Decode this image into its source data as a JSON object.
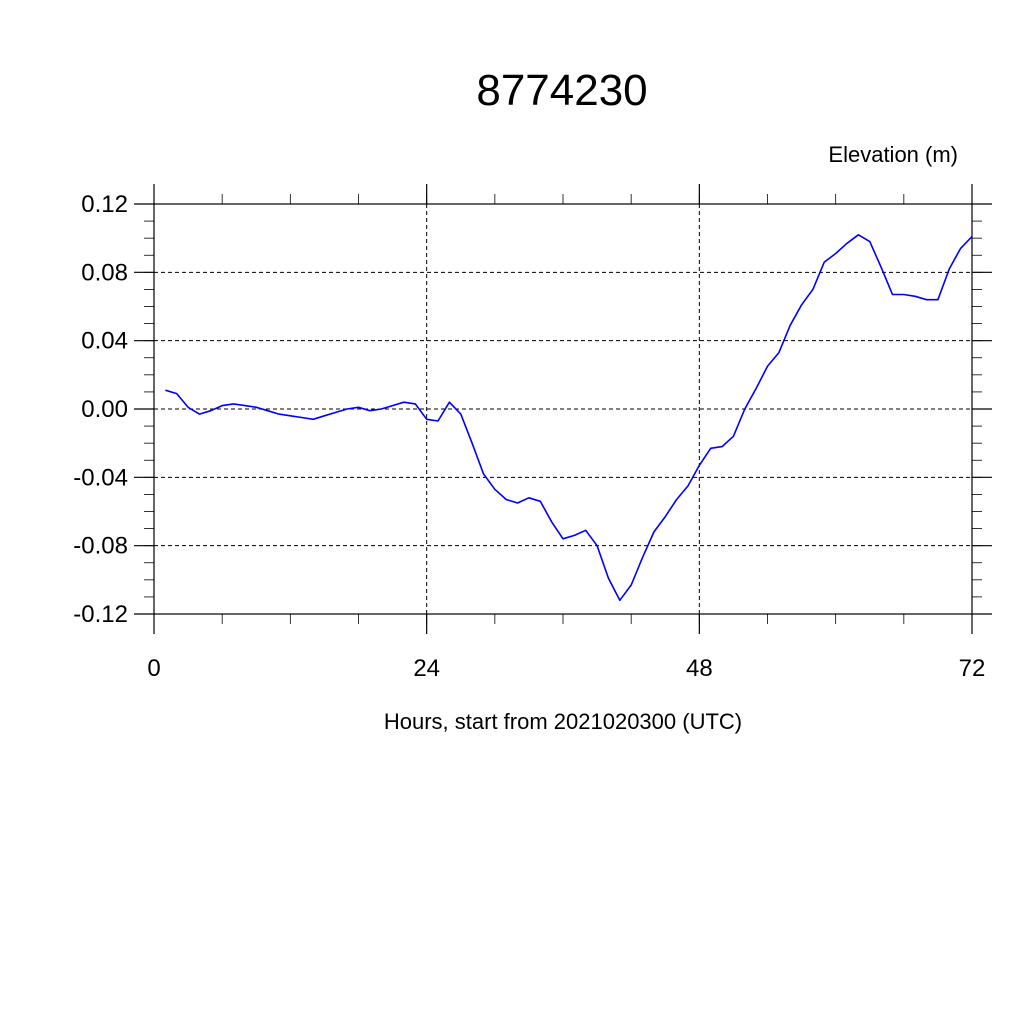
{
  "chart_data": {
    "type": "line",
    "title": "8774230",
    "ylabel": "Elevation (m)",
    "xlabel": "Hours, start from 2021020300 (UTC)",
    "xlim": [
      0,
      72
    ],
    "ylim": [
      -0.12,
      0.12
    ],
    "x_ticks": [
      0,
      24,
      48,
      72
    ],
    "x_tick_labels": [
      "0",
      "24",
      "48",
      "72"
    ],
    "y_ticks": [
      0.12,
      0.08,
      0.04,
      0.0,
      -0.04,
      -0.08,
      -0.12
    ],
    "y_tick_labels": [
      "0.12",
      "0.08",
      "0.04",
      "0.00",
      "-0.04",
      "-0.08",
      "-0.12"
    ],
    "grid": true,
    "line_color": "#0000ff",
    "series": [
      {
        "x": [
          1,
          2,
          3,
          4,
          5,
          6,
          7,
          8,
          9,
          10,
          11,
          12,
          13,
          14,
          15,
          16,
          17,
          18,
          19,
          20,
          21,
          22,
          23,
          24,
          25,
          26,
          27,
          28,
          29,
          30,
          31,
          32,
          33,
          34,
          35,
          36,
          37,
          38,
          39,
          40,
          41,
          42,
          43,
          44,
          45,
          46,
          47,
          48,
          49,
          50,
          51,
          52,
          53,
          54,
          55,
          56,
          57,
          58,
          59,
          60,
          61,
          62,
          63,
          64,
          65,
          66,
          67,
          68,
          69,
          70,
          71,
          72
        ],
        "y": [
          0.011,
          0.009,
          0.001,
          -0.003,
          -0.001,
          0.002,
          0.003,
          0.002,
          0.001,
          -0.001,
          -0.003,
          -0.004,
          -0.005,
          -0.006,
          -0.004,
          -0.002,
          0.0,
          0.001,
          -0.001,
          0.0,
          0.002,
          0.004,
          0.003,
          -0.006,
          -0.007,
          0.004,
          -0.003,
          -0.02,
          -0.038,
          -0.047,
          -0.053,
          -0.055,
          -0.052,
          -0.054,
          -0.066,
          -0.076,
          -0.074,
          -0.071,
          -0.08,
          -0.099,
          -0.112,
          -0.103,
          -0.087,
          -0.072,
          -0.063,
          -0.053,
          -0.045,
          -0.033,
          -0.023,
          -0.022,
          -0.016,
          0.0,
          0.012,
          0.025,
          0.033,
          0.049,
          0.061,
          0.07,
          0.086,
          0.091,
          0.097,
          0.102,
          0.098,
          0.083,
          0.067,
          0.067,
          0.066,
          0.064,
          0.064,
          0.082,
          0.094,
          0.101
        ]
      }
    ]
  }
}
